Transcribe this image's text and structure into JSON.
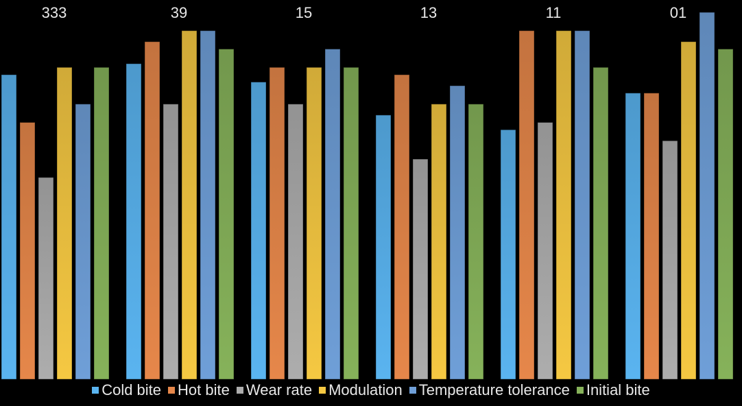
{
  "chart_data": {
    "type": "bar",
    "title": "",
    "xlabel": "",
    "ylabel": "",
    "categories": [
      "333",
      "39",
      "15",
      "13",
      "11",
      "01"
    ],
    "category_label_position": "top",
    "ylim": [
      0.5,
      10.8
    ],
    "grid": false,
    "legend_position": "bottom",
    "series": [
      {
        "name": "Cold bite",
        "color": "#5ab4f0",
        "values": [
          8.8,
          9.1,
          8.6,
          7.7,
          7.3,
          8.3
        ]
      },
      {
        "name": "Hot bite",
        "color": "#e6874a",
        "values": [
          7.5,
          9.7,
          9.0,
          8.8,
          10.0,
          8.3
        ]
      },
      {
        "name": "Wear rate",
        "color": "#adadad",
        "values": [
          6.0,
          8.0,
          8.0,
          6.5,
          7.5,
          7.0
        ]
      },
      {
        "name": "Modulation",
        "color": "#f5c842",
        "values": [
          9.0,
          10.0,
          9.0,
          8.0,
          10.0,
          9.7
        ]
      },
      {
        "name": "Temperature tolerance",
        "color": "#6f9fd8",
        "values": [
          8.0,
          10.0,
          9.5,
          8.5,
          10.0,
          10.5
        ]
      },
      {
        "name": "Initial bite",
        "color": "#86b25a",
        "values": [
          9.0,
          9.5,
          9.0,
          8.0,
          9.0,
          9.5
        ]
      }
    ]
  }
}
